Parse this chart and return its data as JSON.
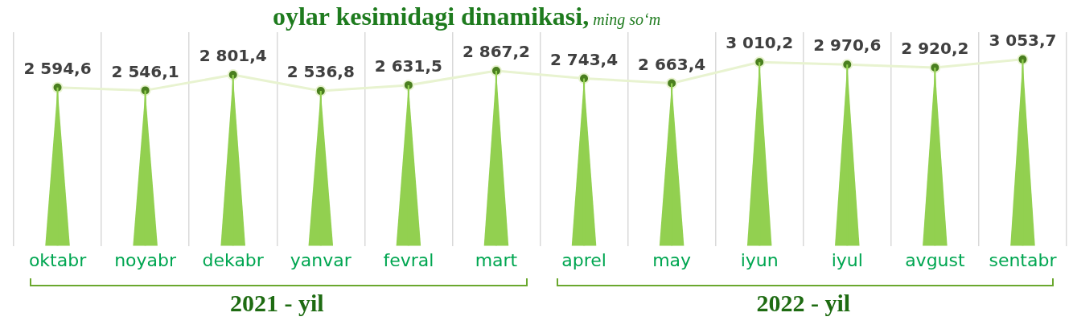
{
  "chart_data": {
    "type": "line",
    "title": "oylar kesimidagi dinamikasi,",
    "subtitle": "ming so‘m",
    "categories": [
      "oktabr",
      "noyabr",
      "dekabr",
      "yanvar",
      "fevral",
      "mart",
      "aprel",
      "may",
      "iyun",
      "iyul",
      "avgust",
      "sentabr"
    ],
    "series": [
      {
        "color": "#4a7f1f",
        "values": [
          2594.6,
          2546.1,
          2801.4,
          2536.8,
          2631.5,
          2867.2,
          2743.4,
          2663.4,
          3010.2,
          2970.6,
          2920.2,
          3053.7
        ],
        "value_labels": [
          "2 594,6",
          "2 546,1",
          "2 801,4",
          "2 536,8",
          "2 631,5",
          "2 867,2",
          "2 743,4",
          "2 663,4",
          "3 010,2",
          "2 970,6",
          "2 920,2",
          "3 053,7"
        ]
      },
      {
        "type": "bar",
        "color": "#92d050",
        "values": [
          2594.6,
          2546.1,
          2801.4,
          2536.8,
          2631.5,
          2867.2,
          2743.4,
          2663.4,
          3010.2,
          2970.6,
          2920.2,
          3053.7
        ]
      }
    ],
    "ylim": [
      0,
      3500
    ],
    "tick_labels": "x",
    "grid": "x",
    "legend": false,
    "marker": "circle",
    "line_style": "solid",
    "annotations": [
      "2021 - yil",
      "2022 - yil"
    ]
  }
}
